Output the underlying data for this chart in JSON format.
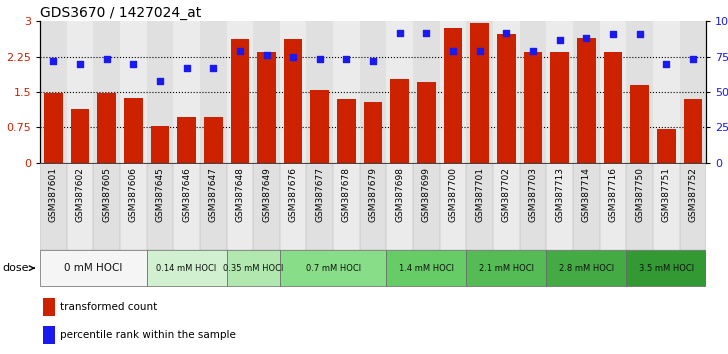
{
  "title": "GDS3670 / 1427024_at",
  "samples": [
    "GSM387601",
    "GSM387602",
    "GSM387605",
    "GSM387606",
    "GSM387645",
    "GSM387646",
    "GSM387647",
    "GSM387648",
    "GSM387649",
    "GSM387676",
    "GSM387677",
    "GSM387678",
    "GSM387679",
    "GSM387698",
    "GSM387699",
    "GSM387700",
    "GSM387701",
    "GSM387702",
    "GSM387703",
    "GSM387713",
    "GSM387714",
    "GSM387716",
    "GSM387750",
    "GSM387751",
    "GSM387752"
  ],
  "bar_values": [
    1.47,
    1.15,
    1.49,
    1.38,
    0.78,
    0.98,
    0.98,
    2.62,
    2.35,
    2.62,
    1.55,
    1.35,
    1.28,
    1.78,
    1.72,
    2.85,
    2.97,
    2.72,
    2.35,
    2.35,
    2.65,
    2.35,
    1.65,
    0.72,
    1.35
  ],
  "percentile_values_pct": [
    72,
    70,
    73,
    70,
    58,
    67,
    67,
    79,
    76,
    75,
    73,
    73,
    72,
    92,
    92,
    79,
    79,
    92,
    79,
    87,
    88,
    91,
    91,
    70,
    73
  ],
  "dose_groups": [
    {
      "label": "0 mM HOCl",
      "start": 0,
      "end": 4,
      "color": "#f0f0f0"
    },
    {
      "label": "0.14 mM HOCl",
      "start": 4,
      "end": 7,
      "color": "#d4f7d4"
    },
    {
      "label": "0.35 mM HOCl",
      "start": 7,
      "end": 9,
      "color": "#b8f0b8"
    },
    {
      "label": "0.7 mM HOCl",
      "start": 9,
      "end": 13,
      "color": "#88ee88"
    },
    {
      "label": "1.4 mM HOCl",
      "start": 13,
      "end": 16,
      "color": "#66dd66"
    },
    {
      "label": "2.1 mM HOCl",
      "start": 16,
      "end": 19,
      "color": "#44cc44"
    },
    {
      "label": "2.8 mM HOCl",
      "start": 19,
      "end": 22,
      "color": "#33bb33"
    },
    {
      "label": "3.5 mM HOCl",
      "start": 22,
      "end": 25,
      "color": "#22aa22"
    }
  ],
  "bar_color": "#cc2200",
  "dot_color": "#1a1aee",
  "ylim_left": [
    0,
    3
  ],
  "ylim_right": [
    0,
    100
  ],
  "yticks_left": [
    0,
    0.75,
    1.5,
    2.25,
    3
  ],
  "yticks_right": [
    0,
    25,
    50,
    75,
    100
  ],
  "ytick_labels_right": [
    "0",
    "25",
    "50",
    "75",
    "100%"
  ],
  "hlines": [
    0.75,
    1.5,
    2.25
  ],
  "title_fontsize": 10
}
